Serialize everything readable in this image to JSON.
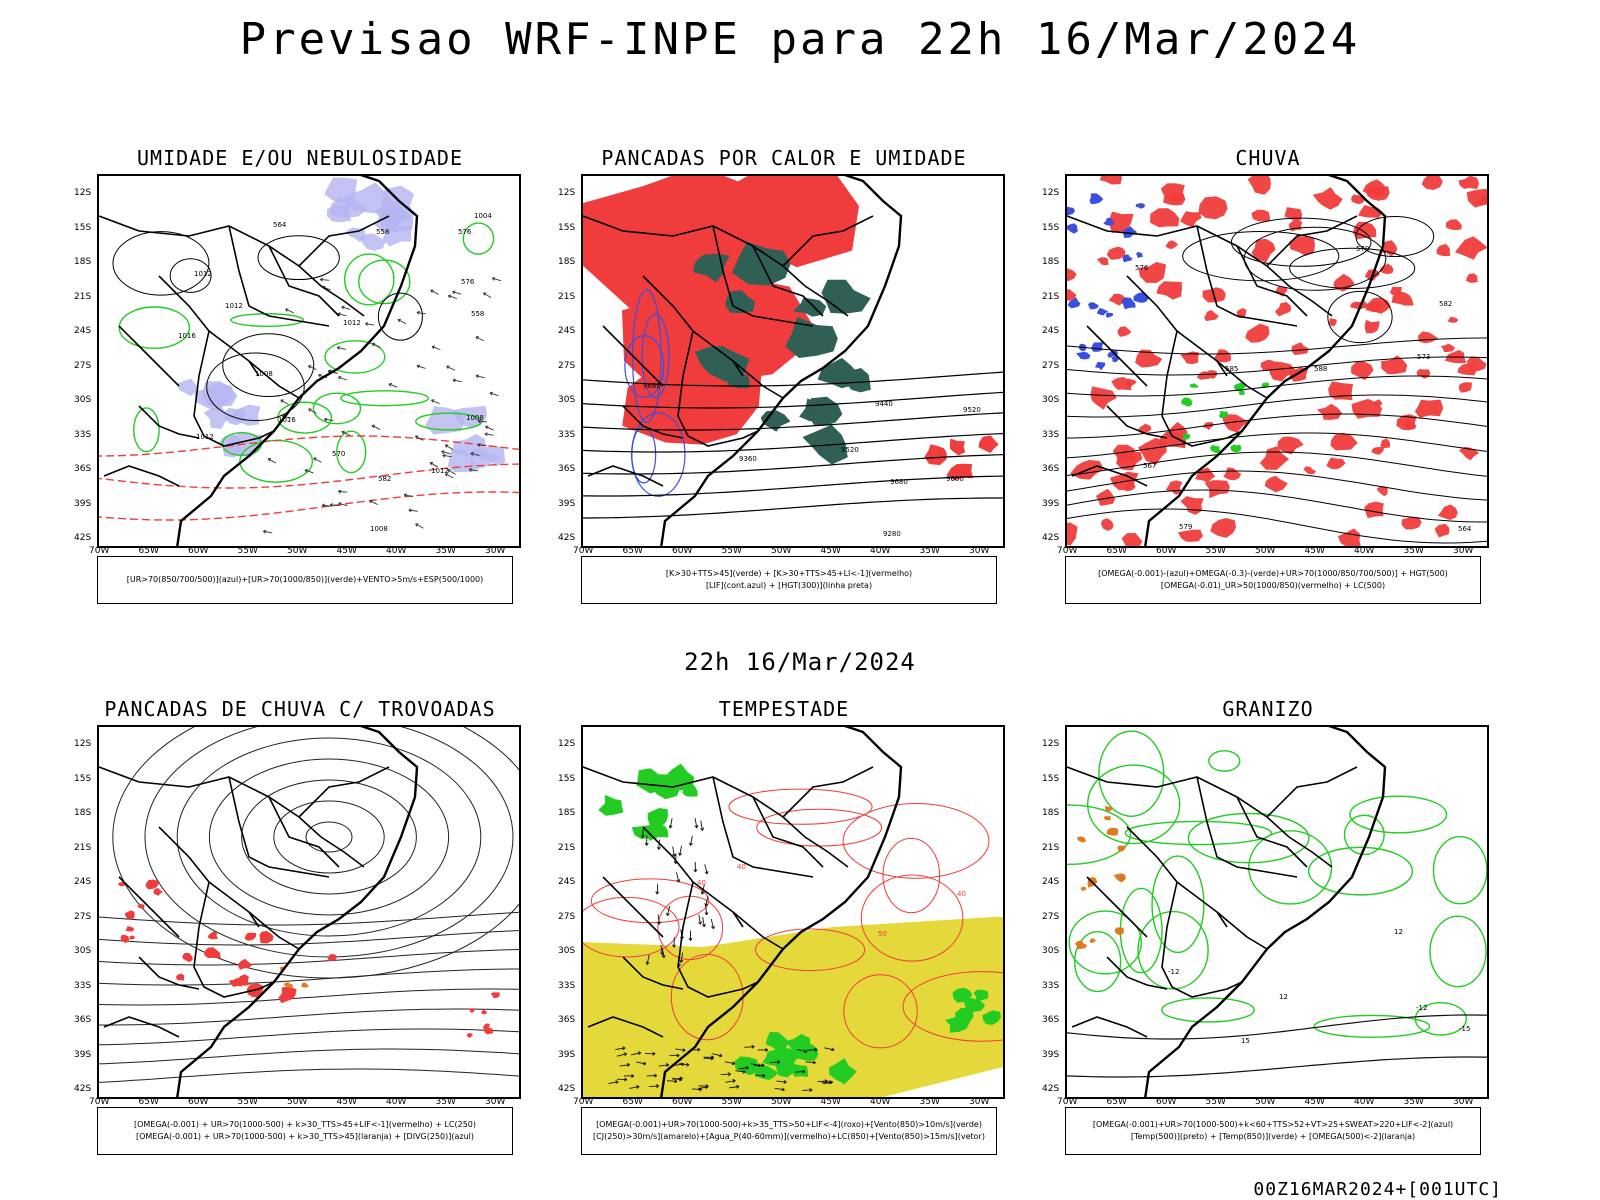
{
  "header": {
    "title": "Previsao WRF-INPE  para 22h 16/Mar/2024",
    "subtitle": "22h 16/Mar/2024",
    "footer": "00Z16MAR2024+[001UTC]"
  },
  "axes": {
    "latitudes": [
      "12S",
      "15S",
      "18S",
      "21S",
      "24S",
      "27S",
      "30S",
      "33S",
      "36S",
      "39S",
      "42S"
    ],
    "longitudes": [
      "70W",
      "65W",
      "60W",
      "55W",
      "50W",
      "45W",
      "40W",
      "35W",
      "30W"
    ]
  },
  "panels": [
    {
      "title": "UMIDADE E/OU NEBULOSIDADE",
      "legend": [
        "[UR>70(850/700/500)](azul)+[UR>70(1000/850)](verde)+VENTO>5m/s+ESP(500/1000)"
      ],
      "contour_labels": [
        "1012",
        "1012",
        "1012",
        "1008",
        "1004",
        "1016",
        "1008",
        "1012",
        "1016",
        "1012",
        "1008",
        "582",
        "576",
        "576",
        "570",
        "564",
        "558",
        "558"
      ]
    },
    {
      "title": "PANCADAS POR CALOR E UMIDADE",
      "legend": [
        "[K>30+TTS>45](verde) + [K>30+TTS>45+LI<-1](vermelho)",
        "[LIF](cont.azul) + [HGT(300)](linha preta)"
      ],
      "contour_labels": [
        "9680",
        "9680",
        "9600",
        "9520",
        "9520",
        "9440",
        "9360",
        "9280"
      ]
    },
    {
      "title": "CHUVA",
      "legend": [
        "[OMEGA(-0.001)-(azul)+OMEGA(-0.3)-(verde)+UR>70(1000/850/700/500)] + HGT(500)",
        "[OMEGA(-0.01)_UR>50(1000/850)(vermelho) + LC(500)"
      ],
      "contour_labels": [
        "588",
        "585",
        "582",
        "579",
        "576",
        "573",
        "570",
        "567",
        "564"
      ]
    },
    {
      "title": "PANCADAS DE CHUVA C/ TROVOADAS",
      "legend": [
        "[OMEGA(-0.001) + UR>70(1000-500) + k>30_TTS>45+LIF<-1](vermelho) + LC(250)",
        "[OMEGA(-0.001) + UR>70(1000-500) + k>30_TTS>45](laranja) + [DIVG(250)](azul)"
      ],
      "contour_labels": []
    },
    {
      "title": "TEMPESTADE",
      "legend": [
        "[OMEGA(-0.001)+UR>70(1000-500)+k>35_TTS>50+LIF<-4](roxo)+[Vento(850)>10m/s](verde)",
        "[CJ(250)>30m/s](amarelo)+[Agua_P(40-60mm)](vermelho)+LC(850)+[Vento(850)>15m/s](vetor)"
      ],
      "contour_labels": [
        "40",
        "40",
        "40",
        "50"
      ]
    },
    {
      "title": "GRANIZO",
      "legend": [
        "[OMEGA(-0.001)+UR>70(1000-500)+k<60+TTS>52+VT>25+SWEAT>220+LIF<-2](azul)",
        "[Temp(500)](preto) + [Temp(850)](verde) + [OMEGA(500)<-2](laranja)"
      ],
      "contour_labels": [
        "-12",
        "-12",
        "-15",
        "12",
        "12",
        "15"
      ]
    }
  ],
  "colors": {
    "red": "#f03c3c",
    "green": "#22cc22",
    "darkgreen": "#2f5f55",
    "blue": "#3a4fe0",
    "lavender": "#b4b4f0",
    "yellow": "#e5d83a",
    "orange": "#e07a20",
    "black": "#000000"
  }
}
